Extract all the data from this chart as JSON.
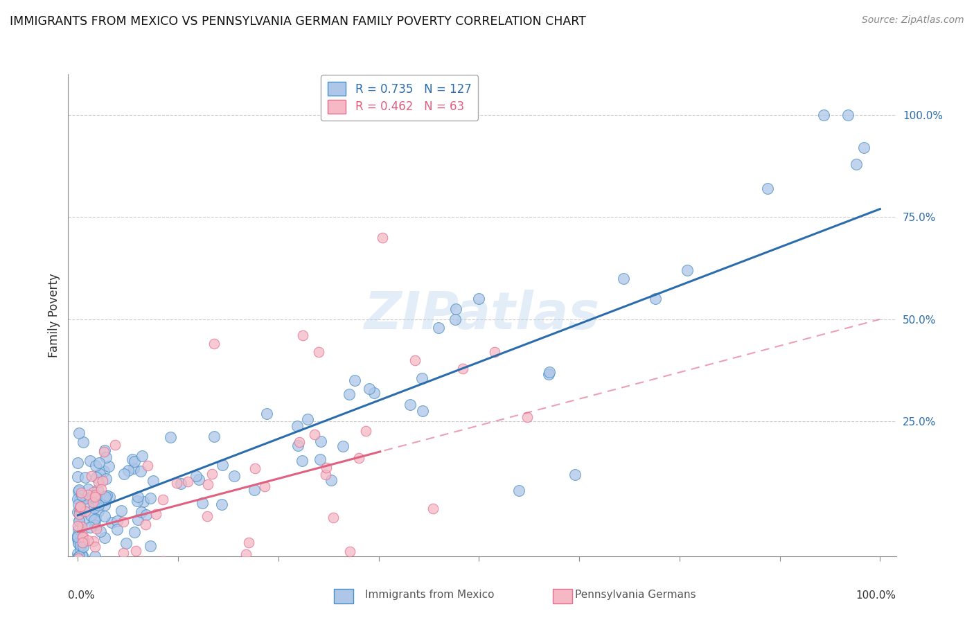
{
  "title": "IMMIGRANTS FROM MEXICO VS PENNSYLVANIA GERMAN FAMILY POVERTY CORRELATION CHART",
  "source": "Source: ZipAtlas.com",
  "ylabel": "Family Poverty",
  "legend_label1": "Immigrants from Mexico",
  "legend_label2": "Pennsylvania Germans",
  "R1": 0.735,
  "N1": 127,
  "R2": 0.462,
  "N2": 63,
  "color_blue_fill": "#aec6e8",
  "color_blue_edge": "#4a90c4",
  "color_blue_line": "#2b6cac",
  "color_pink_fill": "#f5b8c4",
  "color_pink_edge": "#e07090",
  "color_pink_line": "#e06080",
  "background": "#ffffff",
  "grid_color": "#cccccc",
  "blue_line_slope": 0.75,
  "blue_line_intercept": 0.02,
  "pink_line_slope": 0.52,
  "pink_line_intercept": -0.02
}
